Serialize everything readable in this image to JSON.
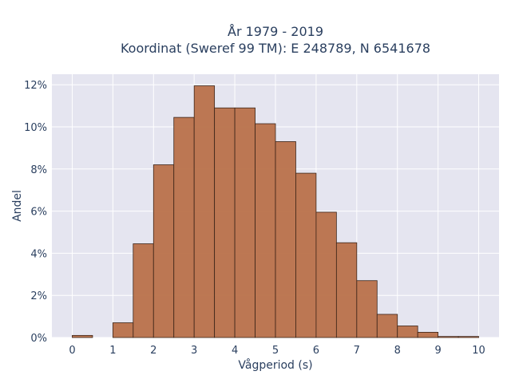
{
  "chart_data": {
    "type": "bar",
    "title_line1": "År 1979 - 2019",
    "title_line2": "Koordinat (Sweref 99 TM): E 248789, N 6541678",
    "xlabel": "Vågperiod (s)",
    "ylabel": "Andel",
    "bin_width": 0.5,
    "bins": [
      {
        "start": 0.0,
        "value": 0.1
      },
      {
        "start": 0.5,
        "value": 0.0
      },
      {
        "start": 1.0,
        "value": 0.7
      },
      {
        "start": 1.5,
        "value": 4.45
      },
      {
        "start": 2.0,
        "value": 8.2
      },
      {
        "start": 2.5,
        "value": 10.45
      },
      {
        "start": 3.0,
        "value": 11.95
      },
      {
        "start": 3.5,
        "value": 10.9
      },
      {
        "start": 4.0,
        "value": 10.9
      },
      {
        "start": 4.5,
        "value": 10.15
      },
      {
        "start": 5.0,
        "value": 9.3
      },
      {
        "start": 5.5,
        "value": 7.8
      },
      {
        "start": 6.0,
        "value": 5.95
      },
      {
        "start": 6.5,
        "value": 4.5
      },
      {
        "start": 7.0,
        "value": 2.7
      },
      {
        "start": 7.5,
        "value": 1.1
      },
      {
        "start": 8.0,
        "value": 0.55
      },
      {
        "start": 8.5,
        "value": 0.25
      },
      {
        "start": 9.0,
        "value": 0.05
      },
      {
        "start": 9.5,
        "value": 0.05
      }
    ],
    "xlim": [
      -0.5,
      10.5
    ],
    "ylim": [
      0,
      12.5
    ],
    "x_ticks": [
      0,
      1,
      2,
      3,
      4,
      5,
      6,
      7,
      8,
      9,
      10
    ],
    "x_tick_labels": [
      "0",
      "1",
      "2",
      "3",
      "4",
      "5",
      "6",
      "7",
      "8",
      "9",
      "10"
    ],
    "y_ticks": [
      0,
      2,
      4,
      6,
      8,
      10,
      12
    ],
    "y_tick_labels": [
      "0%",
      "2%",
      "4%",
      "6%",
      "8%",
      "10%",
      "12%"
    ],
    "grid": true,
    "colors": {
      "bar_fill": "#b9714a",
      "bar_stroke": "#3b2418",
      "plot_bg": "#e5e5f0",
      "grid": "#ffffff",
      "text": "#2a3f5f"
    }
  }
}
